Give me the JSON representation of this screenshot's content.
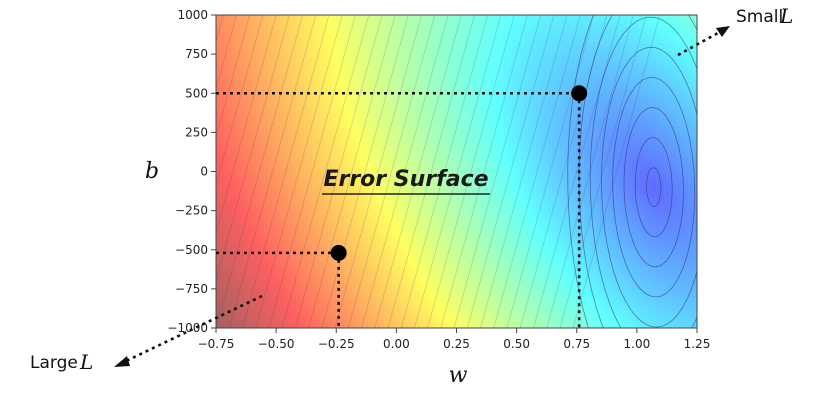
{
  "chart_data": {
    "type": "heatmap",
    "title": "Error Surface",
    "xlabel": "w",
    "ylabel": "b",
    "xlim": [
      -0.75,
      1.25
    ],
    "ylim": [
      -1000,
      1000
    ],
    "x_ticks": [
      "−0.75",
      "−0.50",
      "−0.25",
      "0.00",
      "0.25",
      "0.50",
      "0.75",
      "1.00",
      "1.25"
    ],
    "x_tick_values": [
      -0.75,
      -0.5,
      -0.25,
      0.0,
      0.25,
      0.5,
      0.75,
      1.0,
      1.25
    ],
    "y_ticks": [
      "1000",
      "750",
      "500",
      "250",
      "0",
      "−250",
      "−500",
      "−750",
      "−1000"
    ],
    "y_tick_values": [
      1000,
      750,
      500,
      250,
      0,
      -250,
      -500,
      -750,
      -1000
    ],
    "colormap": "jet (reversed: red = large loss, blue = small loss)",
    "contour_lines": true,
    "loss_minimum_approx": {
      "w": 1.07,
      "b": -100
    },
    "points": [
      {
        "w": 0.76,
        "b": 500
      },
      {
        "w": -0.24,
        "b": -520
      }
    ],
    "annotations": {
      "small": {
        "text": "Small",
        "var": "L",
        "toward": "top-right"
      },
      "large": {
        "text": "Large",
        "var": "L",
        "toward": "bottom-left"
      }
    }
  }
}
